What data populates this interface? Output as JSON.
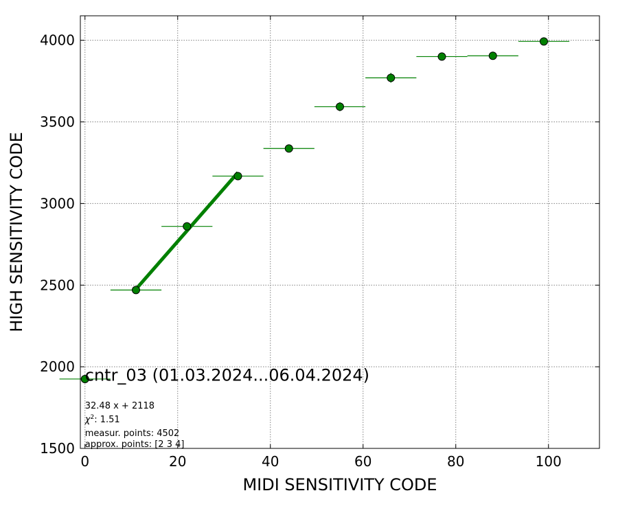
{
  "chart_data": {
    "type": "scatter",
    "xlabel": "MIDI SENSITIVITY CODE",
    "ylabel": "HIGH SENSITIVITY CODE",
    "xlim": [
      -1,
      111
    ],
    "ylim": [
      1500,
      4150
    ],
    "xticks": [
      0,
      20,
      40,
      60,
      80,
      100
    ],
    "yticks": [
      1500,
      2000,
      2500,
      3000,
      3500,
      4000
    ],
    "xtick_labels": [
      "0",
      "20",
      "40",
      "60",
      "80",
      100
    ],
    "ytick_labels": [
      "1500",
      "2000",
      "2500",
      "3000",
      "3500",
      "4000"
    ],
    "grid": true,
    "colors": {
      "marker": "#008000",
      "fit_line": "#008000",
      "marker_edge": "#000000",
      "grid": "#808080"
    },
    "series": [
      {
        "x": [
          0,
          11,
          22,
          33,
          44,
          55,
          66,
          77,
          88,
          99
        ],
        "y": [
          1925,
          2470,
          2860,
          3168,
          3337,
          3593,
          3770,
          3900,
          3905,
          3993
        ],
        "xerr": 5.5,
        "yerr": [
          8,
          12,
          14,
          22,
          22,
          28,
          30,
          24,
          24,
          14
        ]
      }
    ],
    "fit": {
      "slope": 32.48,
      "intercept": 2118,
      "x_range": [
        11,
        33
      ]
    },
    "annotations": {
      "title": "cntr_03 (01.03.2024...06.04.2024)",
      "fit_label": "32.48 x + 2118",
      "chi2_label": "1.51",
      "chi2_symbol": "χ",
      "chi2_exp": "2",
      "measur_label": "measur. points: 4502",
      "approx_label": "approx. points: [2 3 4]"
    }
  }
}
